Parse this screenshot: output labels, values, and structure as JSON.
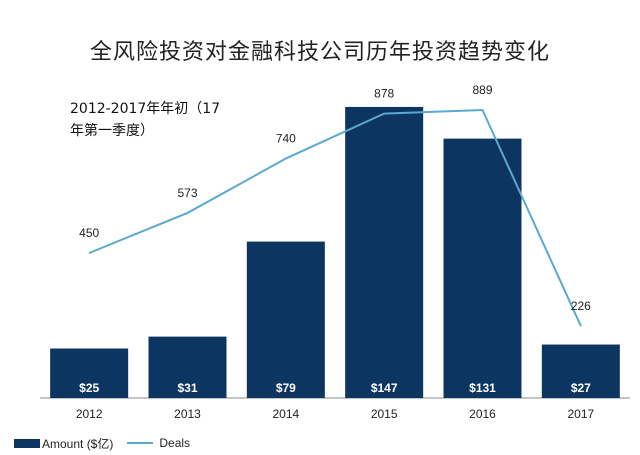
{
  "chart_data": {
    "type": "bar",
    "title": "全风险投资对金融科技公司历年投资趋势变化",
    "subtitle_line1": "2012-2017年年初（17",
    "subtitle_line2": "年第一季度）",
    "categories": [
      "2012",
      "2013",
      "2014",
      "2015",
      "2016",
      "2017"
    ],
    "series": [
      {
        "name": "Amount ($亿)",
        "type": "bar",
        "values": [
          25,
          31,
          79,
          147,
          131,
          27
        ],
        "labels": [
          "$25",
          "$31",
          "$79",
          "$147",
          "$131",
          "$27"
        ]
      },
      {
        "name": "Deals",
        "type": "line",
        "values": [
          450,
          573,
          740,
          878,
          889,
          226
        ],
        "labels": [
          "450",
          "573",
          "740",
          "878",
          "889",
          "226"
        ]
      }
    ],
    "bar_ylim": [
      0,
      150
    ],
    "line_ylim": [
      0,
      1000
    ],
    "grid": false,
    "legend_position": "bottom-left",
    "colors": {
      "bar": "#0d3562",
      "line": "#5aa9cf"
    }
  }
}
